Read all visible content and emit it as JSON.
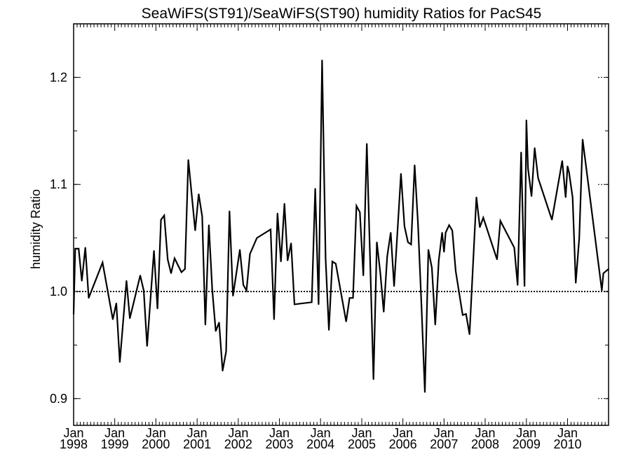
{
  "chart_data": {
    "type": "line",
    "title": "SeaWiFS(ST91)/SeaWiFS(ST90)  humidity Ratios for PacS45",
    "xlabel": "",
    "ylabel": "humidity Ratio",
    "xlim": [
      "1998-01",
      "2010-12"
    ],
    "ylim": [
      0.875,
      1.25
    ],
    "yticks": [
      {
        "value": 0.9,
        "label": "0.9"
      },
      {
        "value": 1.0,
        "label": "1.0"
      },
      {
        "value": 1.1,
        "label": "1.1"
      },
      {
        "value": 1.2,
        "label": "1.2"
      }
    ],
    "xticks": [
      {
        "date": "1998-01",
        "month": "Jan",
        "year": "1998"
      },
      {
        "date": "1999-01",
        "month": "Jan",
        "year": "1999"
      },
      {
        "date": "2000-01",
        "month": "Jan",
        "year": "2000"
      },
      {
        "date": "2001-01",
        "month": "Jan",
        "year": "2001"
      },
      {
        "date": "2002-01",
        "month": "Jan",
        "year": "2002"
      },
      {
        "date": "2003-01",
        "month": "Jan",
        "year": "2003"
      },
      {
        "date": "2004-01",
        "month": "Jan",
        "year": "2004"
      },
      {
        "date": "2005-01",
        "month": "Jan",
        "year": "2005"
      },
      {
        "date": "2006-01",
        "month": "Jan",
        "year": "2006"
      },
      {
        "date": "2007-01",
        "month": "Jan",
        "year": "2007"
      },
      {
        "date": "2008-01",
        "month": "Jan",
        "year": "2008"
      },
      {
        "date": "2009-01",
        "month": "Jan",
        "year": "2009"
      },
      {
        "date": "2010-01",
        "month": "Jan",
        "year": "2010"
      }
    ],
    "reference_line": {
      "y": 1.0,
      "style": "dotted"
    },
    "grid": false,
    "series": [
      {
        "color": "#000000",
        "points": [
          [
            "1998-01-01",
            0.979
          ],
          [
            "1998-01-15",
            1.04
          ],
          [
            "1998-02-15",
            1.04
          ],
          [
            "1998-03-15",
            1.01
          ],
          [
            "1998-04-15",
            1.041
          ],
          [
            "1998-05-15",
            0.994
          ],
          [
            "1998-09-15",
            1.027
          ],
          [
            "1998-12-15",
            0.974
          ],
          [
            "1999-01-15",
            0.989
          ],
          [
            "1999-02-15",
            0.934
          ],
          [
            "1999-04-15",
            1.01
          ],
          [
            "1999-05-15",
            0.975
          ],
          [
            "1999-08-15",
            1.015
          ],
          [
            "1999-09-15",
            1.001
          ],
          [
            "1999-10-15",
            0.949
          ],
          [
            "1999-12-15",
            1.038
          ],
          [
            "2000-01-15",
            0.984
          ],
          [
            "2000-02-15",
            1.067
          ],
          [
            "2000-03-15",
            1.071
          ],
          [
            "2000-04-15",
            1.03
          ],
          [
            "2000-05-15",
            1.017
          ],
          [
            "2000-06-15",
            1.031
          ],
          [
            "2000-08-15",
            1.018
          ],
          [
            "2000-09-15",
            1.021
          ],
          [
            "2000-10-15",
            1.123
          ],
          [
            "2000-12-15",
            1.057
          ],
          [
            "2001-01-15",
            1.091
          ],
          [
            "2001-02-15",
            1.07
          ],
          [
            "2001-03-15",
            0.969
          ],
          [
            "2001-04-15",
            1.062
          ],
          [
            "2001-05-15",
            1.002
          ],
          [
            "2001-06-15",
            0.963
          ],
          [
            "2001-07-15",
            0.971
          ],
          [
            "2001-08-15",
            0.926
          ],
          [
            "2001-09-15",
            0.944
          ],
          [
            "2001-10-15",
            1.075
          ],
          [
            "2001-11-15",
            0.996
          ],
          [
            "2002-01-15",
            1.039
          ],
          [
            "2002-02-15",
            1.006
          ],
          [
            "2002-03-15",
            1.001
          ],
          [
            "2002-04-15",
            1.035
          ],
          [
            "2002-06-15",
            1.05
          ],
          [
            "2002-10-15",
            1.058
          ],
          [
            "2002-11-15",
            0.974
          ],
          [
            "2002-12-15",
            1.073
          ],
          [
            "2003-01-15",
            1.028
          ],
          [
            "2003-02-15",
            1.082
          ],
          [
            "2003-03-15",
            1.029
          ],
          [
            "2003-04-15",
            1.045
          ],
          [
            "2003-05-15",
            0.988
          ],
          [
            "2003-10-15",
            0.99
          ],
          [
            "2003-11-15",
            1.096
          ],
          [
            "2003-12-15",
            0.988
          ],
          [
            "2004-01-15",
            1.216
          ],
          [
            "2004-02-15",
            1.031
          ],
          [
            "2004-03-15",
            0.964
          ],
          [
            "2004-04-15",
            1.028
          ],
          [
            "2004-05-15",
            1.026
          ],
          [
            "2004-08-15",
            0.972
          ],
          [
            "2004-09-15",
            0.994
          ],
          [
            "2004-10-15",
            0.994
          ],
          [
            "2004-11-15",
            1.08
          ],
          [
            "2004-12-15",
            1.074
          ],
          [
            "2005-01-15",
            1.015
          ],
          [
            "2005-02-15",
            1.138
          ],
          [
            "2005-04-15",
            0.918
          ],
          [
            "2005-05-15",
            1.046
          ],
          [
            "2005-06-15",
            1.017
          ],
          [
            "2005-07-15",
            0.981
          ],
          [
            "2005-08-15",
            1.033
          ],
          [
            "2005-09-15",
            1.055
          ],
          [
            "2005-10-15",
            1.005
          ],
          [
            "2005-11-15",
            1.058
          ],
          [
            "2005-12-15",
            1.11
          ],
          [
            "2006-01-15",
            1.061
          ],
          [
            "2006-02-15",
            1.046
          ],
          [
            "2006-03-15",
            1.044
          ],
          [
            "2006-04-15",
            1.118
          ],
          [
            "2006-05-15",
            1.063
          ],
          [
            "2006-06-15",
            0.986
          ],
          [
            "2006-07-15",
            0.906
          ],
          [
            "2006-08-15",
            1.039
          ],
          [
            "2006-09-15",
            1.022
          ],
          [
            "2006-10-15",
            0.969
          ],
          [
            "2006-11-15",
            1.029
          ],
          [
            "2006-12-15",
            1.055
          ],
          [
            "2007-01-01",
            1.037
          ],
          [
            "2007-01-15",
            1.055
          ],
          [
            "2007-02-15",
            1.062
          ],
          [
            "2007-03-15",
            1.057
          ],
          [
            "2007-04-15",
            1.019
          ],
          [
            "2007-06-15",
            0.978
          ],
          [
            "2007-07-15",
            0.979
          ],
          [
            "2007-08-15",
            0.96
          ],
          [
            "2007-10-15",
            1.088
          ],
          [
            "2007-11-15",
            1.06
          ],
          [
            "2007-12-15",
            1.069
          ],
          [
            "2008-04-15",
            1.03
          ],
          [
            "2008-05-15",
            1.066
          ],
          [
            "2008-09-15",
            1.041
          ],
          [
            "2008-10-15",
            1.006
          ],
          [
            "2008-11-15",
            1.13
          ],
          [
            "2008-12-15",
            1.005
          ],
          [
            "2009-01-01",
            1.16
          ],
          [
            "2009-01-15",
            1.115
          ],
          [
            "2009-02-15",
            1.089
          ],
          [
            "2009-03-15",
            1.134
          ],
          [
            "2009-04-15",
            1.106
          ],
          [
            "2009-08-15",
            1.067
          ],
          [
            "2009-11-15",
            1.122
          ],
          [
            "2009-12-15",
            1.088
          ],
          [
            "2010-01-01",
            1.117
          ],
          [
            "2010-01-15",
            1.111
          ],
          [
            "2010-02-15",
            1.088
          ],
          [
            "2010-03-15",
            1.008
          ],
          [
            "2010-04-15",
            1.05
          ],
          [
            "2010-05-15",
            1.142
          ],
          [
            "2010-11-01",
            1.001
          ],
          [
            "2010-11-15",
            1.017
          ],
          [
            "2010-12-31",
            1.021
          ]
        ]
      }
    ]
  }
}
